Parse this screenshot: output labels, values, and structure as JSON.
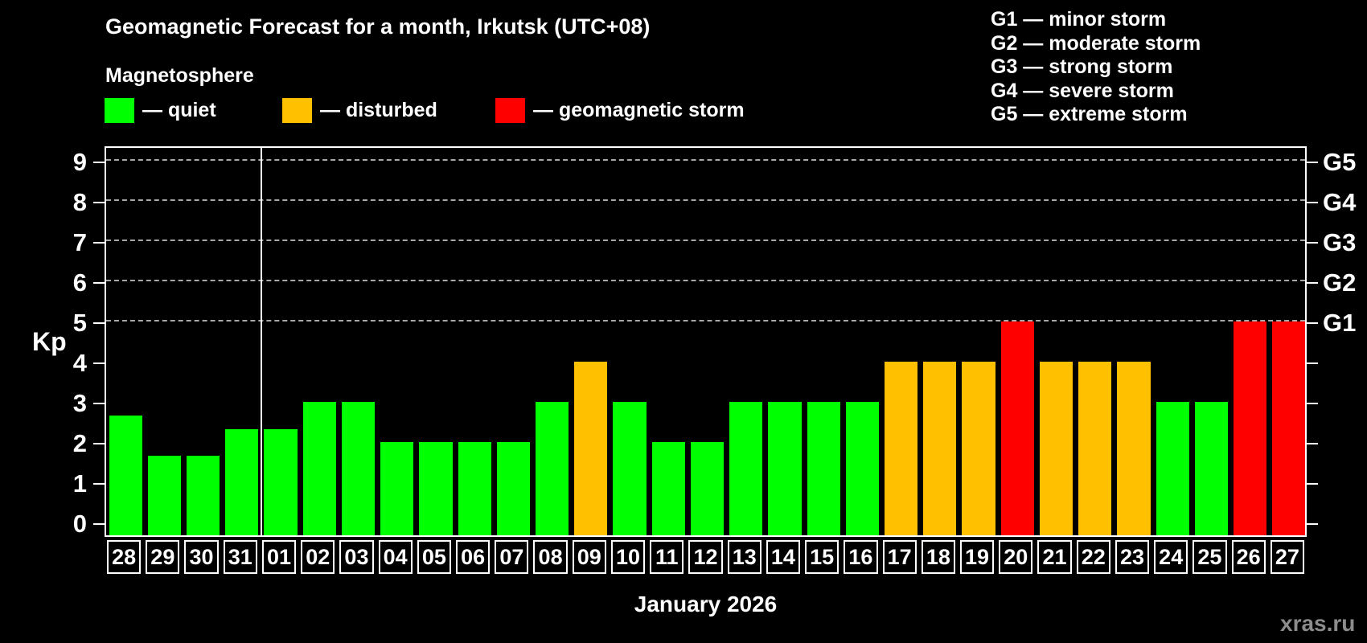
{
  "page": {
    "xlabel": "January 2026",
    "watermark": "xras.ru"
  },
  "legend": {
    "group_label": "Magnetosphere",
    "items": [
      {
        "label": "— quiet",
        "level": "quiet"
      },
      {
        "label": "— disturbed",
        "level": "disturbed"
      },
      {
        "label": "— geomagnetic storm",
        "level": "storm"
      }
    ]
  },
  "g_legend": [
    "G1 — minor storm",
    "G2 — moderate storm",
    "G3 — strong storm",
    "G4 — severe storm",
    "G5 — extreme storm"
  ],
  "chart_data": {
    "type": "bar",
    "title": "Geomagnetic Forecast for a month, Irkutsk (UTC+08)",
    "xlabel": "January 2026",
    "ylabel": "Kp",
    "ylim": [
      0,
      9.4
    ],
    "yticks": [
      0,
      1,
      2,
      3,
      4,
      5,
      6,
      7,
      8,
      9
    ],
    "grid_levels": [
      5,
      6,
      7,
      8,
      9
    ],
    "grid_style": "dashed",
    "legend_position": "top",
    "right_axis": [
      {
        "kp": 5,
        "label": "G1"
      },
      {
        "kp": 6,
        "label": "G2"
      },
      {
        "kp": 7,
        "label": "G3"
      },
      {
        "kp": 8,
        "label": "G4"
      },
      {
        "kp": 9,
        "label": "G5"
      }
    ],
    "colors": {
      "quiet": "#00ff00",
      "disturbed": "#ffc000",
      "storm": "#ff0000",
      "background": "#000000",
      "text": "#ffffff",
      "grid": "#a8a8a8"
    },
    "month_separator_before": "01",
    "bars": [
      {
        "date": "28",
        "kp": 2.67,
        "level": "quiet"
      },
      {
        "date": "29",
        "kp": 1.67,
        "level": "quiet"
      },
      {
        "date": "30",
        "kp": 1.67,
        "level": "quiet"
      },
      {
        "date": "31",
        "kp": 2.33,
        "level": "quiet"
      },
      {
        "date": "01",
        "kp": 2.33,
        "level": "quiet"
      },
      {
        "date": "02",
        "kp": 3,
        "level": "quiet"
      },
      {
        "date": "03",
        "kp": 3,
        "level": "quiet"
      },
      {
        "date": "04",
        "kp": 2,
        "level": "quiet"
      },
      {
        "date": "05",
        "kp": 2,
        "level": "quiet"
      },
      {
        "date": "06",
        "kp": 2,
        "level": "quiet"
      },
      {
        "date": "07",
        "kp": 2,
        "level": "quiet"
      },
      {
        "date": "08",
        "kp": 3,
        "level": "quiet"
      },
      {
        "date": "09",
        "kp": 4,
        "level": "disturbed"
      },
      {
        "date": "10",
        "kp": 3,
        "level": "quiet"
      },
      {
        "date": "11",
        "kp": 2,
        "level": "quiet"
      },
      {
        "date": "12",
        "kp": 2,
        "level": "quiet"
      },
      {
        "date": "13",
        "kp": 3,
        "level": "quiet"
      },
      {
        "date": "14",
        "kp": 3,
        "level": "quiet"
      },
      {
        "date": "15",
        "kp": 3,
        "level": "quiet"
      },
      {
        "date": "16",
        "kp": 3,
        "level": "quiet"
      },
      {
        "date": "17",
        "kp": 4,
        "level": "disturbed"
      },
      {
        "date": "18",
        "kp": 4,
        "level": "disturbed"
      },
      {
        "date": "19",
        "kp": 4,
        "level": "disturbed"
      },
      {
        "date": "20",
        "kp": 5,
        "level": "storm"
      },
      {
        "date": "21",
        "kp": 4,
        "level": "disturbed"
      },
      {
        "date": "22",
        "kp": 4,
        "level": "disturbed"
      },
      {
        "date": "23",
        "kp": 4,
        "level": "disturbed"
      },
      {
        "date": "24",
        "kp": 3,
        "level": "quiet"
      },
      {
        "date": "25",
        "kp": 3,
        "level": "quiet"
      },
      {
        "date": "26",
        "kp": 5,
        "level": "storm"
      },
      {
        "date": "27",
        "kp": 5,
        "level": "storm"
      }
    ]
  }
}
